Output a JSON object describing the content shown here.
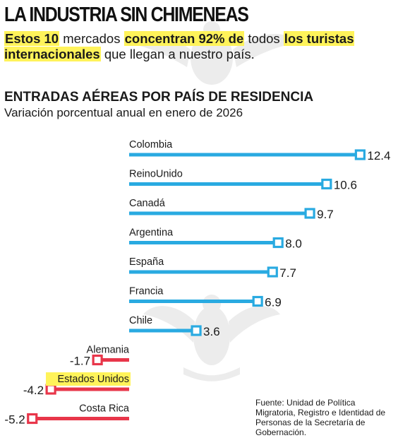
{
  "header": {
    "title": "LA INDUSTRIA SIN CHIMENEAS",
    "intro": [
      {
        "text": "Estos 10",
        "highlight": true
      },
      {
        "text": " mercados ",
        "highlight": false
      },
      {
        "text": "concentran 92% de",
        "highlight": true
      },
      {
        "text": " todos ",
        "highlight": false
      },
      {
        "text": "los turistas internacionales",
        "highlight": true
      },
      {
        "text": " que llegan a nuestro país.",
        "highlight": false
      }
    ]
  },
  "chart_data": {
    "type": "bar",
    "orientation": "horizontal",
    "title": "ENTRADAS AÉREAS POR PAÍS DE RESIDENCIA",
    "subtitle": "Variación porcentual anual en enero de 2026",
    "categories": [
      "Colombia",
      "ReinoUnido",
      "Canadá",
      "Argentina",
      "España",
      "Francia",
      "Chile",
      "Alemania",
      "Estados Unidos",
      "Costa Rica"
    ],
    "values": [
      12.4,
      10.6,
      9.7,
      8.0,
      7.7,
      6.9,
      3.6,
      -1.7,
      -4.2,
      -5.2
    ],
    "value_labels": [
      "12.4",
      "10.6",
      "9.7",
      "8.0",
      "7.7",
      "6.9",
      "3.6",
      "-1.7",
      "-4.2",
      "-5.2"
    ],
    "highlighted_categories": [
      "Estados Unidos"
    ],
    "colors": {
      "positive": "#29aae1",
      "negative": "#e8364a",
      "highlight": "#fff35a"
    },
    "grid": false,
    "legend": "none"
  },
  "source": {
    "text": "Fuente: Unidad de Política Migratoria, Registro e Identidad de Personas de la Secretaría de Gobernación."
  }
}
